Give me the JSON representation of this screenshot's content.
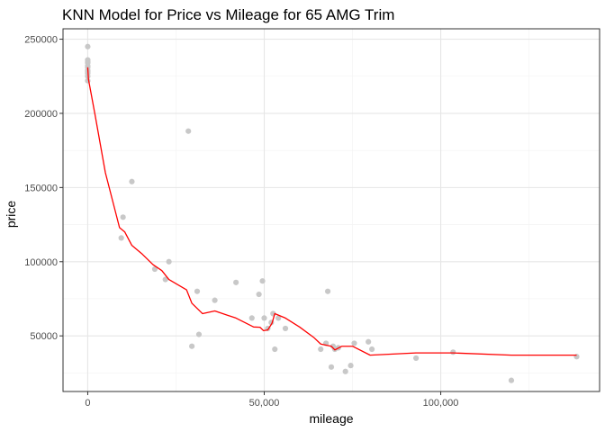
{
  "chart_data": {
    "type": "scatter",
    "title": "KNN Model for Price vs Mileage for 65 AMG Trim",
    "xlabel": "mileage",
    "ylabel": "price",
    "xlim": [
      -7000,
      145000
    ],
    "ylim": [
      12500,
      257000
    ],
    "x_ticks": [
      0,
      50000,
      100000
    ],
    "x_tick_labels": [
      "0",
      "50,000",
      "100,000"
    ],
    "y_ticks": [
      50000,
      100000,
      150000,
      200000,
      250000
    ],
    "y_tick_labels": [
      "50000",
      "100000",
      "150000",
      "200000",
      "250000"
    ],
    "grid": true,
    "legend": "none",
    "colors": {
      "points": "#c8c8c8",
      "fit_line": "#ff0000",
      "grid_major": "#e6e6e6",
      "grid_minor": "#f2f2f2",
      "panel_border": "#333333"
    },
    "series": [
      {
        "type": "scatter",
        "points": [
          [
            0,
            245000
          ],
          [
            0,
            236000
          ],
          [
            0,
            235000
          ],
          [
            0,
            234000
          ],
          [
            0,
            232000
          ],
          [
            0,
            231000
          ],
          [
            0,
            229000
          ],
          [
            0,
            228000
          ],
          [
            0,
            227000
          ],
          [
            0,
            225000
          ],
          [
            0,
            222000
          ],
          [
            9500,
            116000
          ],
          [
            10000,
            130000
          ],
          [
            12500,
            154000
          ],
          [
            19000,
            95000
          ],
          [
            22000,
            88000
          ],
          [
            23000,
            100000
          ],
          [
            28500,
            188000
          ],
          [
            29500,
            43000
          ],
          [
            31000,
            80000
          ],
          [
            31500,
            51000
          ],
          [
            36000,
            74000
          ],
          [
            42000,
            86000
          ],
          [
            46500,
            62000
          ],
          [
            48500,
            78000
          ],
          [
            49500,
            87000
          ],
          [
            50000,
            62000
          ],
          [
            51000,
            55000
          ],
          [
            52000,
            59000
          ],
          [
            52500,
            65000
          ],
          [
            53000,
            41000
          ],
          [
            54000,
            62000
          ],
          [
            56000,
            55000
          ],
          [
            66000,
            41000
          ],
          [
            67500,
            45000
          ],
          [
            68000,
            80000
          ],
          [
            69000,
            29000
          ],
          [
            69500,
            43000
          ],
          [
            70000,
            41000
          ],
          [
            71000,
            42000
          ],
          [
            73000,
            26000
          ],
          [
            74500,
            30000
          ],
          [
            75500,
            45000
          ],
          [
            79500,
            46000
          ],
          [
            80500,
            41000
          ],
          [
            93000,
            35000
          ],
          [
            103500,
            39000
          ],
          [
            120000,
            20000
          ],
          [
            138500,
            36000
          ]
        ]
      },
      {
        "type": "line",
        "points": [
          [
            0,
            231000
          ],
          [
            200,
            223000
          ],
          [
            2000,
            200000
          ],
          [
            5000,
            160000
          ],
          [
            9000,
            123000
          ],
          [
            10500,
            120000
          ],
          [
            12500,
            111000
          ],
          [
            15500,
            105000
          ],
          [
            18500,
            98000
          ],
          [
            21000,
            94000
          ],
          [
            23000,
            88000
          ],
          [
            28000,
            81000
          ],
          [
            29500,
            72000
          ],
          [
            32500,
            65000
          ],
          [
            36000,
            66800
          ],
          [
            42000,
            62000
          ],
          [
            47000,
            56000
          ],
          [
            48800,
            55800
          ],
          [
            49800,
            53500
          ],
          [
            51000,
            54000
          ],
          [
            52200,
            58500
          ],
          [
            53000,
            65000
          ],
          [
            56000,
            62000
          ],
          [
            60000,
            56000
          ],
          [
            64000,
            49000
          ],
          [
            66000,
            44500
          ],
          [
            69000,
            43000
          ],
          [
            70000,
            40500
          ],
          [
            72000,
            43000
          ],
          [
            75000,
            43000
          ],
          [
            80000,
            37000
          ],
          [
            93000,
            38500
          ],
          [
            103500,
            38500
          ],
          [
            120000,
            37000
          ],
          [
            138500,
            37000
          ]
        ]
      }
    ]
  }
}
